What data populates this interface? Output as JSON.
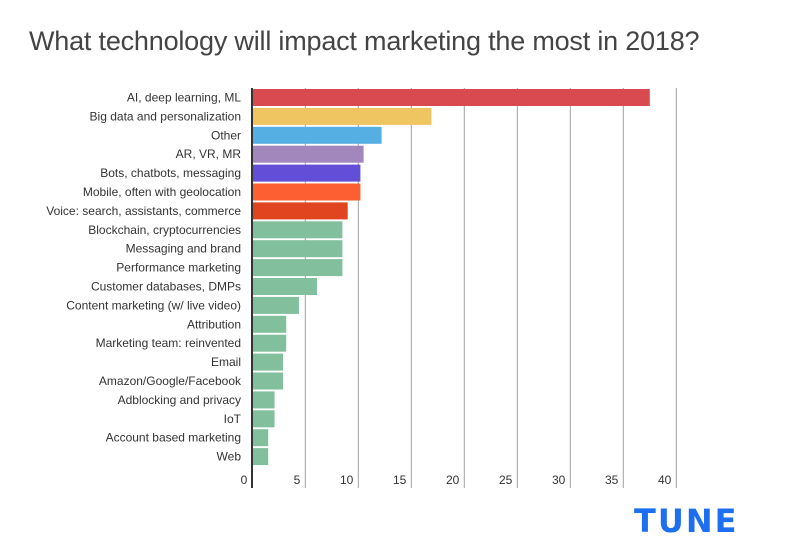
{
  "chart_data": {
    "type": "bar",
    "orientation": "horizontal",
    "title": "What technology will impact marketing the most in 2018?",
    "xlabel": "",
    "ylabel": "",
    "xlim": [
      0,
      40
    ],
    "xticks": [
      0,
      5,
      10,
      15,
      20,
      25,
      30,
      35,
      40
    ],
    "grid": true,
    "legend": "none",
    "categories": [
      "AI, deep learning, ML",
      "Big data and personalization",
      "Other",
      "AR, VR, MR",
      "Bots, chatbots, messaging",
      "Mobile, often with geolocation",
      "Voice: search, assistants, commerce",
      "Blockchain, cryptocurrencies",
      "Messaging and brand",
      "Performance marketing",
      "Customer databases, DMPs",
      "Content marketing (w/ live video)",
      "Attribution",
      "Marketing team: reinvented",
      "Email",
      "Amazon/Google/Facebook",
      "Adblocking and privacy",
      "IoT",
      "Account based marketing",
      "Web"
    ],
    "values": [
      37.5,
      16.9,
      12.2,
      10.5,
      10.2,
      10.2,
      9.0,
      8.5,
      8.5,
      8.5,
      6.1,
      4.4,
      3.2,
      3.2,
      2.9,
      2.9,
      2.1,
      2.1,
      1.5,
      1.5
    ],
    "colors": [
      "#d94a50",
      "#eec560",
      "#56afe2",
      "#a287bd",
      "#634ed8",
      "#fd5f32",
      "#e0451f",
      "#82bf9c",
      "#82bf9c",
      "#82bf9c",
      "#82bf9c",
      "#82bf9c",
      "#82bf9c",
      "#82bf9c",
      "#82bf9c",
      "#82bf9c",
      "#82bf9c",
      "#82bf9c",
      "#82bf9c",
      "#82bf9c"
    ]
  },
  "branding": {
    "logo_text": "TUNE",
    "logo_color": "#1e6ef0"
  }
}
